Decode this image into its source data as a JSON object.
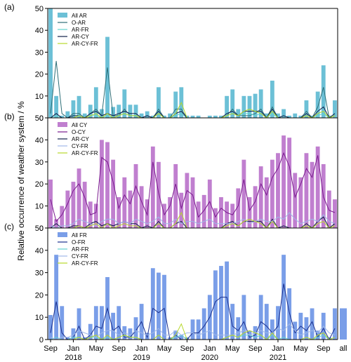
{
  "ylabel": "Relative occurrence of weather system / %",
  "xaxis": {
    "labels": [
      "Sep",
      "Jan",
      "May",
      "Sep",
      "Jan",
      "May",
      "Sep",
      "Jan",
      "May",
      "Sep",
      "Jan",
      "May",
      "Sep",
      "all"
    ],
    "years": [
      "2018",
      "2019",
      "2020",
      "2021"
    ]
  },
  "chart_data": [
    {
      "type": "bar",
      "panel_label": "(a)",
      "ylim": [
        0,
        50
      ],
      "yticks": [
        0,
        10,
        20,
        30,
        40,
        50
      ],
      "bar_color": "#6cc0d6",
      "legend": [
        {
          "name": "All AR",
          "kind": "bar",
          "color": "#6cc0d6"
        },
        {
          "name": "O-AR",
          "kind": "line",
          "color": "#2e6f78"
        },
        {
          "name": "AR-FR",
          "kind": "line",
          "color": "#62d3cf"
        },
        {
          "name": "AR-CY",
          "kind": "line",
          "color": "#10204a"
        },
        {
          "name": "AR-CY-FR",
          "kind": "line",
          "color": "#b7d82a"
        }
      ],
      "bars": [
        50,
        10,
        1,
        3,
        8,
        10,
        2,
        6,
        14,
        4,
        37,
        5,
        6,
        13,
        6,
        6,
        2,
        3,
        1,
        14,
        1,
        2,
        12,
        14,
        1,
        1,
        1,
        0,
        1,
        1,
        1,
        10,
        13,
        4,
        10,
        10,
        11,
        13,
        2,
        17,
        2,
        4,
        1,
        2,
        1,
        8,
        1,
        12,
        24,
        1,
        8
      ],
      "lines": [
        {
          "name": "O-AR",
          "values": [
            2,
            26,
            2,
            0,
            2,
            2,
            0,
            2,
            4,
            1,
            23,
            1,
            1,
            4,
            1,
            1,
            0,
            1,
            0,
            4,
            0,
            0,
            4,
            4,
            0,
            0,
            0,
            0,
            0,
            0,
            0,
            1,
            4,
            1,
            1,
            1,
            2,
            4,
            0,
            5,
            0,
            1,
            0,
            0,
            0,
            3,
            0,
            5,
            14,
            0,
            1
          ]
        },
        {
          "name": "AR-FR",
          "values": [
            0,
            1,
            0,
            0,
            1,
            1,
            0,
            1,
            1,
            0,
            1,
            0,
            1,
            2,
            1,
            1,
            0,
            0,
            0,
            2,
            0,
            0,
            1,
            2,
            0,
            0,
            0,
            0,
            0,
            0,
            0,
            1,
            2,
            1,
            2,
            2,
            1,
            2,
            0,
            2,
            0,
            1,
            0,
            0,
            0,
            1,
            0,
            1,
            2,
            0,
            1
          ]
        },
        {
          "name": "AR-CY",
          "values": [
            0,
            2,
            0,
            0,
            1,
            1,
            0,
            2,
            3,
            1,
            2,
            1,
            2,
            3,
            2,
            2,
            0,
            1,
            0,
            3,
            0,
            0,
            2,
            3,
            0,
            0,
            0,
            0,
            0,
            0,
            0,
            2,
            3,
            1,
            3,
            3,
            3,
            3,
            0,
            4,
            0,
            1,
            0,
            0,
            0,
            2,
            0,
            3,
            5,
            0,
            2
          ]
        },
        {
          "name": "AR-CY-FR",
          "values": [
            0,
            0,
            0,
            0,
            0,
            1,
            0,
            1,
            2,
            0,
            2,
            0,
            1,
            2,
            1,
            1,
            0,
            0,
            0,
            2,
            0,
            0,
            2,
            7,
            0,
            0,
            0,
            0,
            0,
            0,
            0,
            1,
            2,
            1,
            3,
            4,
            3,
            2,
            0,
            3,
            0,
            0,
            0,
            0,
            0,
            1,
            0,
            2,
            3,
            0,
            1
          ]
        }
      ]
    },
    {
      "type": "bar",
      "panel_label": "(b)",
      "ylim": [
        0,
        50
      ],
      "yticks": [
        0,
        10,
        20,
        30,
        40,
        50
      ],
      "bar_color": "#c07fcf",
      "legend": [
        {
          "name": "All CY",
          "kind": "bar",
          "color": "#c07fcf"
        },
        {
          "name": "O-CY",
          "kind": "line",
          "color": "#7a1a8e"
        },
        {
          "name": "AR-CY",
          "kind": "line",
          "color": "#10204a"
        },
        {
          "name": "CY-FR",
          "kind": "line",
          "color": "#9fb8e8"
        },
        {
          "name": "AR-CY-FR",
          "kind": "line",
          "color": "#b7d82a"
        }
      ],
      "bars": [
        22,
        4,
        10,
        17,
        21,
        27,
        21,
        12,
        11,
        40,
        39,
        31,
        14,
        23,
        17,
        29,
        19,
        13,
        37,
        30,
        11,
        14,
        29,
        16,
        25,
        23,
        12,
        15,
        22,
        9,
        14,
        12,
        11,
        18,
        31,
        14,
        19,
        28,
        23,
        31,
        34,
        42,
        41,
        25,
        23,
        34,
        30,
        37,
        29,
        17,
        13
      ],
      "lines": [
        {
          "name": "O-CY",
          "values": [
            13,
            3,
            6,
            11,
            17,
            20,
            14,
            6,
            7,
            32,
            30,
            21,
            9,
            15,
            11,
            19,
            12,
            6,
            30,
            16,
            6,
            10,
            20,
            9,
            17,
            15,
            5,
            8,
            12,
            5,
            9,
            7,
            6,
            10,
            22,
            8,
            12,
            20,
            15,
            23,
            27,
            34,
            28,
            14,
            20,
            27,
            23,
            33,
            14,
            8,
            7
          ]
        },
        {
          "name": "AR-CY",
          "values": [
            0,
            2,
            0,
            0,
            1,
            1,
            0,
            2,
            3,
            1,
            2,
            1,
            2,
            3,
            2,
            2,
            0,
            1,
            0,
            3,
            0,
            0,
            2,
            3,
            0,
            0,
            0,
            0,
            0,
            0,
            0,
            2,
            3,
            1,
            3,
            3,
            3,
            3,
            0,
            4,
            0,
            1,
            0,
            0,
            0,
            2,
            0,
            3,
            5,
            0,
            2
          ]
        },
        {
          "name": "CY-FR",
          "values": [
            1,
            0,
            1,
            1,
            2,
            4,
            3,
            2,
            1,
            3,
            4,
            4,
            2,
            3,
            2,
            4,
            3,
            2,
            3,
            5,
            2,
            2,
            4,
            2,
            3,
            3,
            2,
            3,
            4,
            2,
            2,
            2,
            2,
            3,
            4,
            2,
            3,
            4,
            3,
            3,
            5,
            4,
            7,
            4,
            2,
            3,
            4,
            3,
            6,
            3,
            2
          ]
        },
        {
          "name": "AR-CY-FR",
          "values": [
            0,
            0,
            0,
            0,
            0,
            1,
            0,
            1,
            2,
            0,
            2,
            0,
            1,
            2,
            1,
            1,
            0,
            0,
            0,
            2,
            0,
            0,
            2,
            7,
            0,
            0,
            0,
            0,
            0,
            0,
            0,
            1,
            2,
            1,
            3,
            4,
            3,
            2,
            0,
            3,
            0,
            0,
            0,
            0,
            0,
            1,
            0,
            2,
            3,
            0,
            1
          ]
        }
      ]
    },
    {
      "type": "bar",
      "panel_label": "(c)",
      "ylim": [
        0,
        50
      ],
      "yticks": [
        0,
        10,
        20,
        30,
        40,
        50
      ],
      "bar_color": "#7a9ee8",
      "legend": [
        {
          "name": "All FR",
          "kind": "bar",
          "color": "#7a9ee8"
        },
        {
          "name": "O-FR",
          "kind": "line",
          "color": "#1a2f8e"
        },
        {
          "name": "AR-FR",
          "kind": "line",
          "color": "#62d3cf"
        },
        {
          "name": "CY-FR",
          "kind": "line",
          "color": "#9fb8e8"
        },
        {
          "name": "AR-CY-FR",
          "kind": "line",
          "color": "#b7d82a"
        }
      ],
      "bars": [
        11,
        38,
        15,
        1,
        5,
        14,
        1,
        7,
        15,
        15,
        28,
        12,
        15,
        6,
        5,
        10,
        16,
        3,
        32,
        30,
        29,
        1,
        4,
        2,
        1,
        9,
        9,
        14,
        20,
        31,
        33,
        35,
        16,
        10,
        20,
        4,
        6,
        20,
        16,
        9,
        15,
        38,
        23,
        8,
        12,
        10,
        14,
        4,
        12,
        1,
        14
      ],
      "lines": [
        {
          "name": "O-FR",
          "values": [
            3,
            17,
            3,
            0,
            1,
            6,
            0,
            2,
            6,
            5,
            14,
            4,
            6,
            1,
            1,
            4,
            8,
            1,
            14,
            12,
            14,
            0,
            2,
            0,
            0,
            3,
            3,
            6,
            10,
            17,
            19,
            19,
            6,
            4,
            8,
            1,
            2,
            8,
            6,
            3,
            6,
            25,
            12,
            3,
            6,
            4,
            8,
            1,
            5,
            0,
            5
          ]
        },
        {
          "name": "AR-FR",
          "values": [
            0,
            1,
            0,
            0,
            1,
            1,
            0,
            1,
            1,
            0,
            1,
            0,
            1,
            2,
            1,
            1,
            0,
            0,
            0,
            2,
            0,
            0,
            1,
            2,
            0,
            0,
            0,
            0,
            0,
            0,
            0,
            1,
            2,
            1,
            2,
            2,
            1,
            2,
            0,
            2,
            0,
            1,
            0,
            0,
            0,
            1,
            0,
            1,
            2,
            0,
            1
          ]
        },
        {
          "name": "CY-FR",
          "values": [
            1,
            0,
            1,
            1,
            2,
            4,
            3,
            2,
            1,
            3,
            4,
            4,
            2,
            3,
            2,
            4,
            3,
            2,
            3,
            5,
            2,
            2,
            4,
            2,
            3,
            3,
            2,
            3,
            4,
            2,
            2,
            2,
            2,
            3,
            4,
            2,
            3,
            4,
            3,
            3,
            5,
            4,
            7,
            4,
            2,
            3,
            4,
            3,
            6,
            3,
            2
          ]
        },
        {
          "name": "AR-CY-FR",
          "values": [
            0,
            0,
            0,
            0,
            0,
            1,
            0,
            1,
            2,
            0,
            2,
            0,
            1,
            2,
            1,
            1,
            0,
            0,
            0,
            2,
            0,
            0,
            2,
            7,
            0,
            0,
            0,
            0,
            0,
            0,
            0,
            1,
            2,
            1,
            3,
            4,
            3,
            2,
            0,
            3,
            0,
            0,
            0,
            0,
            0,
            1,
            0,
            2,
            3,
            0,
            1
          ]
        }
      ],
      "all_value": 14
    }
  ]
}
